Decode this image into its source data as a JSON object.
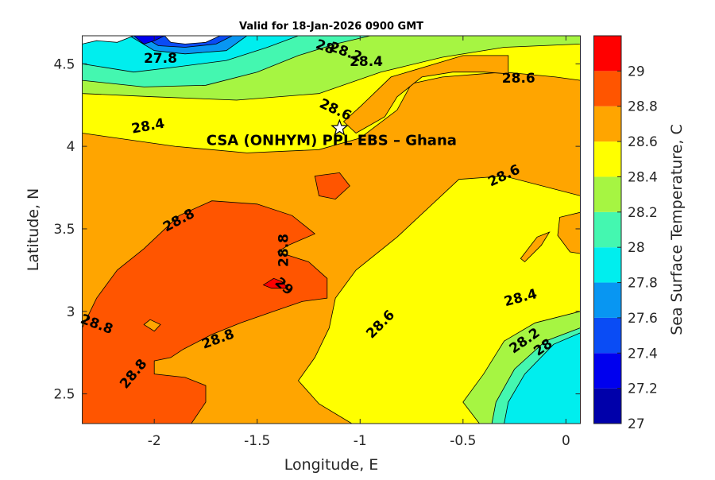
{
  "chart_data": {
    "type": "heatmap",
    "title": "Valid for 18-Jan-2026 0900 GMT",
    "xlabel": "Longitude, E",
    "ylabel": "Latitude, N",
    "colorbar_label": "Sea Surface Temperature, C",
    "xlim": [
      -2.35,
      0.07
    ],
    "ylim": [
      2.32,
      4.67
    ],
    "x_ticks": [
      -2,
      -1.5,
      -1,
      -0.5,
      0
    ],
    "x_tick_labels": [
      "-2",
      "-1.5",
      "-1",
      "-0.5",
      "0"
    ],
    "y_ticks": [
      2.5,
      3,
      3.5,
      4,
      4.5
    ],
    "y_tick_labels": [
      "2.5",
      "3",
      "3.5",
      "4",
      "4.5"
    ],
    "colorbar": {
      "levels": [
        27,
        27.2,
        27.4,
        27.6,
        27.8,
        28,
        28.2,
        28.4,
        28.6,
        28.8,
        29,
        29.2
      ],
      "tick_labels": [
        "27",
        "27.2",
        "27.4",
        "27.6",
        "27.8",
        "28",
        "28.2",
        "28.4",
        "28.6",
        "28.8",
        "29"
      ],
      "colors": [
        "#0000aa",
        "#0000ee",
        "#0a4cf5",
        "#0896f2",
        "#00eeee",
        "#44f7b0",
        "#a6f542",
        "#ffff00",
        "#ffa500",
        "#ff5500",
        "#ff0000"
      ]
    },
    "marker": {
      "name": "CSA (ONHYM) PPL EBS  – Ghana",
      "lon": -1.1,
      "lat": 4.11,
      "symbol": "star"
    },
    "regions": [
      {
        "level": 28.6,
        "color": "#ffa500",
        "points": [
          [
            -2.35,
            2.32
          ],
          [
            0.07,
            2.32
          ],
          [
            0.07,
            4.67
          ],
          [
            -2.35,
            4.67
          ]
        ]
      },
      {
        "level": 28.4,
        "color": "#ffff00",
        "points": [
          [
            -1.04,
            2.32
          ],
          [
            -0.42,
            2.32
          ],
          [
            -0.2,
            2.55
          ],
          [
            0.07,
            2.75
          ],
          [
            0.07,
            3.7
          ],
          [
            -0.3,
            3.82
          ],
          [
            -0.52,
            3.8
          ],
          [
            -0.82,
            3.45
          ],
          [
            -1.02,
            3.25
          ],
          [
            -1.12,
            3.08
          ],
          [
            -1.15,
            2.9
          ],
          [
            -1.22,
            2.72
          ],
          [
            -1.3,
            2.58
          ],
          [
            -1.2,
            2.44
          ]
        ]
      },
      {
        "level": 28.8,
        "color": "#ff5500",
        "points": [
          [
            -2.35,
            2.9
          ],
          [
            -2.28,
            3.08
          ],
          [
            -2.18,
            3.25
          ],
          [
            -2.05,
            3.38
          ],
          [
            -1.88,
            3.58
          ],
          [
            -1.72,
            3.67
          ],
          [
            -1.5,
            3.65
          ],
          [
            -1.33,
            3.58
          ],
          [
            -1.22,
            3.47
          ],
          [
            -1.35,
            3.4
          ],
          [
            -1.4,
            3.36
          ],
          [
            -1.25,
            3.3
          ],
          [
            -1.16,
            3.2
          ],
          [
            -1.16,
            3.08
          ],
          [
            -1.28,
            3.06
          ],
          [
            -1.42,
            3.0
          ],
          [
            -1.58,
            2.93
          ],
          [
            -1.72,
            2.86
          ],
          [
            -1.86,
            2.77
          ],
          [
            -1.92,
            2.72
          ],
          [
            -2.0,
            2.7
          ],
          [
            -2.0,
            2.62
          ],
          [
            -1.85,
            2.6
          ],
          [
            -1.75,
            2.55
          ],
          [
            -1.75,
            2.45
          ],
          [
            -1.82,
            2.32
          ],
          [
            -2.35,
            2.32
          ]
        ]
      },
      {
        "level": 28.6,
        "color": "#ffa500",
        "points": [
          [
            -2.05,
            2.92
          ],
          [
            -2.0,
            2.88
          ],
          [
            -1.97,
            2.92
          ],
          [
            -2.02,
            2.95
          ]
        ]
      },
      {
        "level": 29,
        "color": "#ff0000",
        "points": [
          [
            -1.47,
            3.16
          ],
          [
            -1.42,
            3.2
          ],
          [
            -1.38,
            3.18
          ],
          [
            -1.35,
            3.14
          ],
          [
            -1.43,
            3.14
          ]
        ]
      },
      {
        "level": 28.8,
        "color": "#ff5500",
        "points": [
          [
            -1.22,
            3.82
          ],
          [
            -1.1,
            3.84
          ],
          [
            -1.05,
            3.76
          ],
          [
            -1.12,
            3.68
          ],
          [
            -1.2,
            3.7
          ]
        ]
      },
      {
        "level": 28.6,
        "color": "#ffa500",
        "points": [
          [
            0.07,
            3.6
          ],
          [
            -0.03,
            3.57
          ],
          [
            -0.04,
            3.46
          ],
          [
            0.02,
            3.36
          ],
          [
            0.07,
            3.35
          ]
        ]
      },
      {
        "level": 28.6,
        "color": "#ffa500",
        "points": [
          [
            -0.22,
            3.32
          ],
          [
            -0.14,
            3.45
          ],
          [
            -0.08,
            3.48
          ],
          [
            -0.12,
            3.4
          ],
          [
            -0.2,
            3.3
          ]
        ]
      },
      {
        "level": 28.2,
        "color": "#a6f542",
        "points": [
          [
            -0.42,
            2.32
          ],
          [
            0.07,
            2.32
          ],
          [
            0.07,
            3.0
          ],
          [
            -0.15,
            2.93
          ],
          [
            -0.3,
            2.82
          ],
          [
            -0.4,
            2.62
          ],
          [
            -0.5,
            2.45
          ]
        ]
      },
      {
        "level": 28,
        "color": "#44f7b0",
        "points": [
          [
            -0.36,
            2.32
          ],
          [
            0.07,
            2.32
          ],
          [
            0.07,
            2.9
          ],
          [
            -0.1,
            2.82
          ],
          [
            -0.25,
            2.65
          ],
          [
            -0.34,
            2.45
          ]
        ]
      },
      {
        "level": 27.8,
        "color": "#00eeee",
        "points": [
          [
            -0.3,
            2.32
          ],
          [
            0.07,
            2.32
          ],
          [
            0.07,
            2.87
          ],
          [
            -0.06,
            2.8
          ],
          [
            -0.2,
            2.62
          ],
          [
            -0.28,
            2.45
          ]
        ]
      },
      {
        "level": 28.4,
        "color": "#ffff00",
        "points": [
          [
            -2.35,
            4.08
          ],
          [
            -1.9,
            4.0
          ],
          [
            -1.55,
            3.96
          ],
          [
            -1.2,
            3.98
          ],
          [
            -1.0,
            4.05
          ],
          [
            -0.82,
            4.22
          ],
          [
            -0.75,
            4.38
          ],
          [
            -0.6,
            4.42
          ],
          [
            -0.3,
            4.45
          ],
          [
            -0.05,
            4.42
          ],
          [
            0.07,
            4.4
          ],
          [
            0.07,
            4.67
          ],
          [
            -2.35,
            4.67
          ]
        ]
      },
      {
        "level": 28.6,
        "color": "#ffa500",
        "points": [
          [
            -1.02,
            4.08
          ],
          [
            -0.88,
            4.18
          ],
          [
            -0.82,
            4.3
          ],
          [
            -0.7,
            4.42
          ],
          [
            -0.55,
            4.45
          ],
          [
            -0.4,
            4.45
          ],
          [
            -0.28,
            4.44
          ],
          [
            -0.28,
            4.55
          ],
          [
            -0.5,
            4.55
          ],
          [
            -0.85,
            4.42
          ],
          [
            -1.0,
            4.24
          ],
          [
            -1.08,
            4.15
          ]
        ]
      },
      {
        "level": 28.2,
        "color": "#a6f542",
        "points": [
          [
            -2.35,
            4.32
          ],
          [
            -2.0,
            4.3
          ],
          [
            -1.6,
            4.28
          ],
          [
            -1.2,
            4.32
          ],
          [
            -0.9,
            4.45
          ],
          [
            -0.6,
            4.54
          ],
          [
            -0.3,
            4.6
          ],
          [
            0.07,
            4.62
          ],
          [
            0.07,
            4.67
          ],
          [
            -2.35,
            4.67
          ]
        ]
      },
      {
        "level": 28,
        "color": "#44f7b0",
        "points": [
          [
            -2.35,
            4.4
          ],
          [
            -2.05,
            4.36
          ],
          [
            -1.75,
            4.37
          ],
          [
            -1.5,
            4.45
          ],
          [
            -1.3,
            4.55
          ],
          [
            -1.12,
            4.62
          ],
          [
            -0.95,
            4.67
          ],
          [
            -2.35,
            4.67
          ]
        ]
      },
      {
        "level": 27.8,
        "color": "#00eeee",
        "points": [
          [
            -2.35,
            4.5
          ],
          [
            -2.1,
            4.45
          ],
          [
            -1.9,
            4.48
          ],
          [
            -1.65,
            4.52
          ],
          [
            -1.45,
            4.6
          ],
          [
            -1.3,
            4.67
          ],
          [
            -2.35,
            4.67
          ]
        ]
      },
      {
        "level": 27.6,
        "color": "#0896f2",
        "points": [
          [
            -2.12,
            4.67
          ],
          [
            -2.0,
            4.58
          ],
          [
            -1.85,
            4.56
          ],
          [
            -1.65,
            4.58
          ],
          [
            -1.55,
            4.67
          ]
        ]
      },
      {
        "level": 27.4,
        "color": "#0a4cf5",
        "points": [
          [
            -2.06,
            4.67
          ],
          [
            -1.98,
            4.61
          ],
          [
            -1.85,
            4.6
          ],
          [
            -1.7,
            4.62
          ],
          [
            -1.62,
            4.67
          ]
        ]
      },
      {
        "level": 27.2,
        "color": "#0000ee",
        "points": [
          [
            -2.1,
            4.67
          ],
          [
            -2.05,
            4.62
          ],
          [
            -2.0,
            4.64
          ],
          [
            -1.95,
            4.67
          ]
        ]
      },
      {
        "level": null,
        "color": "#ffffff",
        "points": [
          [
            -2.35,
            4.67
          ],
          [
            -2.35,
            4.62
          ],
          [
            -2.28,
            4.64
          ],
          [
            -2.18,
            4.63
          ],
          [
            -2.1,
            4.67
          ]
        ]
      },
      {
        "level": null,
        "color": "#ffffff",
        "points": [
          [
            -1.95,
            4.67
          ],
          [
            -1.92,
            4.63
          ],
          [
            -1.85,
            4.62
          ],
          [
            -1.75,
            4.63
          ],
          [
            -1.68,
            4.67
          ]
        ]
      }
    ],
    "contour_labels": [
      {
        "text": "27.8",
        "lon": -1.97,
        "lat": 4.53,
        "angle": 0
      },
      {
        "text": "28",
        "lon": -1.17,
        "lat": 4.6,
        "angle": 20
      },
      {
        "text": "28.2",
        "lon": -1.07,
        "lat": 4.57,
        "angle": 20
      },
      {
        "text": "28.4",
        "lon": -0.97,
        "lat": 4.51,
        "angle": 0
      },
      {
        "text": "28.6",
        "lon": -0.23,
        "lat": 4.41,
        "angle": 0
      },
      {
        "text": "28.6",
        "lon": -1.12,
        "lat": 4.22,
        "angle": 25
      },
      {
        "text": "28.4",
        "lon": -2.03,
        "lat": 4.12,
        "angle": -10
      },
      {
        "text": "28.6",
        "lon": -0.3,
        "lat": 3.82,
        "angle": -25
      },
      {
        "text": "28.8",
        "lon": -1.88,
        "lat": 3.55,
        "angle": -28
      },
      {
        "text": "28.8",
        "lon": -1.37,
        "lat": 3.37,
        "angle": -90
      },
      {
        "text": "29",
        "lon": -1.37,
        "lat": 3.15,
        "angle": 40
      },
      {
        "text": "28.4",
        "lon": -0.22,
        "lat": 3.08,
        "angle": -15
      },
      {
        "text": "28.6",
        "lon": -0.9,
        "lat": 2.92,
        "angle": -45
      },
      {
        "text": "28.2",
        "lon": -0.2,
        "lat": 2.82,
        "angle": -35
      },
      {
        "text": "28",
        "lon": -0.11,
        "lat": 2.78,
        "angle": -35
      },
      {
        "text": "28.8",
        "lon": -2.28,
        "lat": 2.92,
        "angle": 20
      },
      {
        "text": "28.8",
        "lon": -1.69,
        "lat": 2.83,
        "angle": -20
      },
      {
        "text": "28.8",
        "lon": -2.1,
        "lat": 2.62,
        "angle": -50
      }
    ]
  }
}
